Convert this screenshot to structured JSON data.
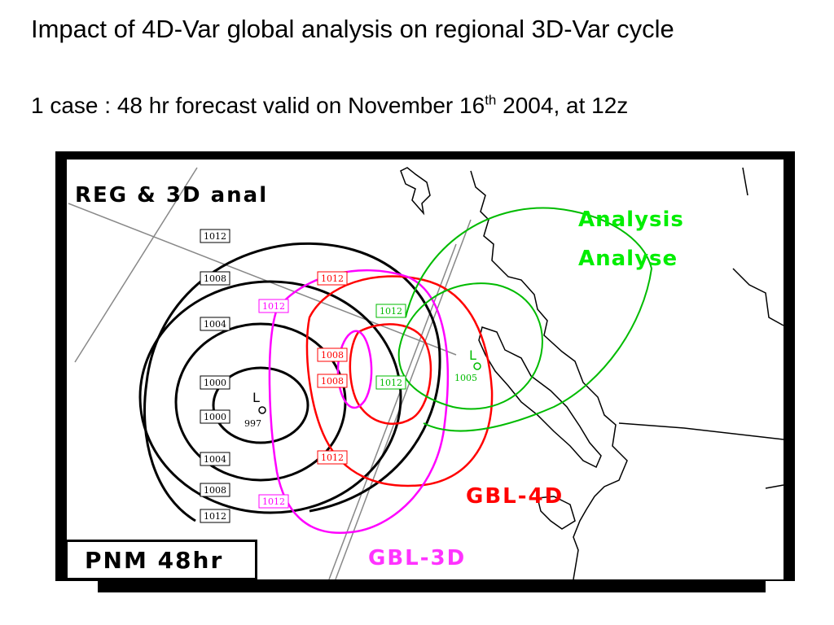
{
  "slide": {
    "title": "Impact of 4D-Var global analysis on regional 3D-Var cycle",
    "subtitle_main": "1 case : 48 hr forecast valid on November 16",
    "subtitle_sup": "th",
    "subtitle_end": " 2004, at 12z"
  },
  "map": {
    "panel_label": "REG & 3D anal",
    "forecast_label": "PNM 48hr",
    "analysis_label_en": "Analysis",
    "analysis_label_fr": "Analyse",
    "gbl4d_label": "GBL-4D",
    "gbl3d_label": "GBL-3D",
    "low_symbol": "L",
    "reg_low_value": "997",
    "analysis_low_value": "1005",
    "isobar_labels_black": [
      "1012",
      "1008",
      "1004",
      "1000",
      "1000",
      "1004",
      "1008",
      "1012"
    ],
    "isobar_labels_red": [
      "1012",
      "1008",
      "1008",
      "1012"
    ],
    "isobar_labels_magenta": [
      "1012",
      "1012"
    ],
    "isobar_labels_green": [
      "1012",
      "1012"
    ],
    "colors": {
      "reg": "#000000",
      "gbl4d": "#ff0000",
      "gbl3d": "#ff00ff",
      "analysis": "#00cc00",
      "coast": "#000000",
      "grid": "#888888"
    }
  }
}
